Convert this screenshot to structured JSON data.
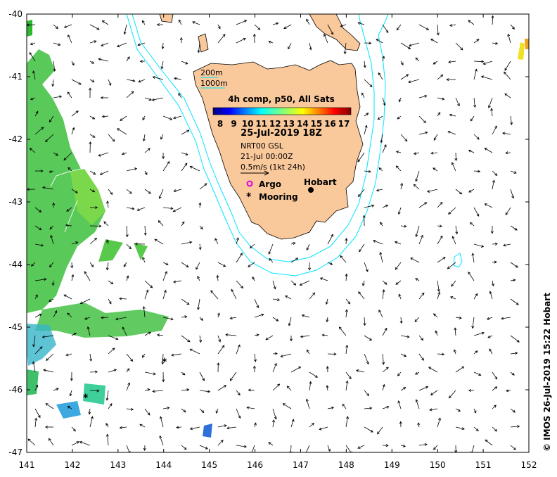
{
  "map": {
    "lon_range": [
      141,
      152
    ],
    "lat_range": [
      -47,
      -40
    ],
    "x_ticks": [
      "141",
      "142",
      "143",
      "144",
      "145",
      "146",
      "147",
      "148",
      "149",
      "150",
      "151",
      "152"
    ],
    "y_ticks": [
      "-40",
      "-41",
      "-42",
      "-43",
      "-44",
      "-45",
      "-46",
      "-47"
    ],
    "land_color": "#f9c89b",
    "isobath_color": "#00e5ff"
  },
  "legend": {
    "isobath_200": "200m",
    "isobath_1000": "1000m",
    "product": "4h comp, p50, All Sats",
    "colorbar_ticks": [
      "8",
      "9",
      "10",
      "11",
      "12",
      "13",
      "14",
      "15",
      "16",
      "17"
    ],
    "colorbar_unit_range": [
      8,
      17
    ],
    "date": "25-Jul-2019 18Z",
    "current_source": "NRT00 GSL",
    "current_time": "21-Jul 00:00Z",
    "scale_arrow_label": "0.5m/s (1kt 24h)",
    "argo_label": "Argo",
    "mooring_label": "Mooring",
    "city_label": "Hobart"
  },
  "credit": "© IMOS 26-Jul-2019 15:22 Hobart"
}
